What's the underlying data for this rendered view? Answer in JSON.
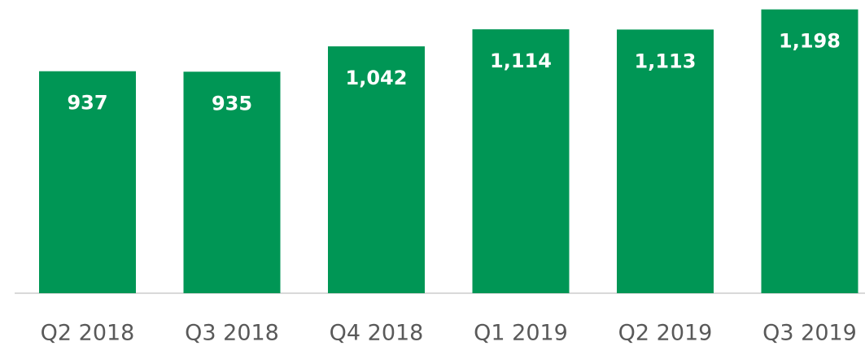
{
  "chart_data": {
    "type": "bar",
    "categories": [
      "Q2 2018",
      "Q3 2018",
      "Q4 2018",
      "Q1 2019",
      "Q2 2019",
      "Q3 2019"
    ],
    "values": [
      937,
      935,
      1042,
      1114,
      1113,
      1198
    ],
    "value_labels": [
      "937",
      "935",
      "1,042",
      "1,114",
      "1,113",
      "1,198"
    ],
    "color": "#009655",
    "ylim": [
      0,
      1200
    ]
  }
}
